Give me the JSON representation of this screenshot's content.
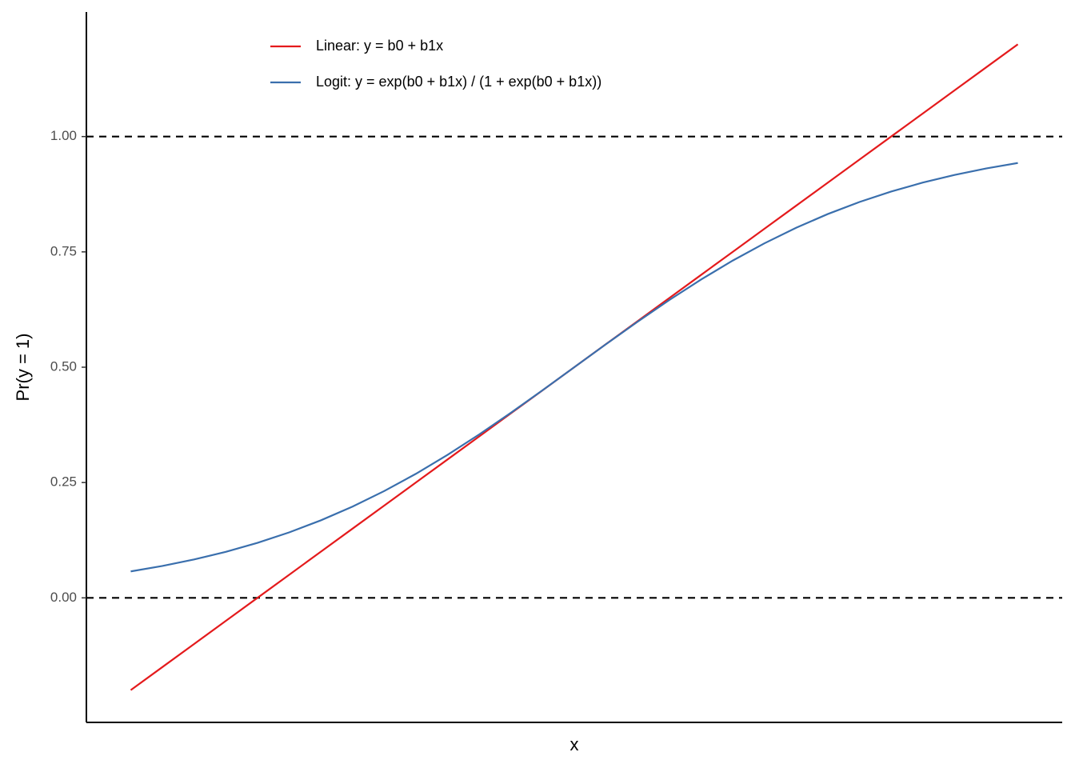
{
  "chart_data": {
    "type": "line",
    "x_label": "x",
    "y_label": "Pr(y = 1)",
    "x": [
      -2.8,
      -2.6,
      -2.4,
      -2.2,
      -2.0,
      -1.8,
      -1.6,
      -1.4,
      -1.2,
      -1.0,
      -0.8,
      -0.6,
      -0.4,
      -0.2,
      0,
      0.2,
      0.4,
      0.6,
      0.8,
      1.0,
      1.2,
      1.4,
      1.6,
      1.8,
      2.0,
      2.2,
      2.4,
      2.6,
      2.8
    ],
    "series": [
      {
        "name": "Linear: y = b0 + b1x",
        "color": "#e41a1c",
        "values": [
          -0.2,
          -0.15,
          -0.1,
          -0.05,
          0,
          0.05,
          0.1,
          0.15,
          0.2,
          0.25,
          0.3,
          0.35,
          0.4,
          0.45,
          0.5,
          0.55,
          0.6,
          0.65,
          0.7,
          0.75,
          0.8,
          0.85,
          0.9,
          0.95,
          1.0,
          1.05,
          1.1,
          1.15,
          1.2
        ]
      },
      {
        "name": "Logit: y = exp(b0 + b1x) / (1 + exp(b0 + b1x))",
        "color": "#3a6fad",
        "values": [
          0.0573,
          0.0691,
          0.0832,
          0.0998,
          0.1192,
          0.1419,
          0.168,
          0.1978,
          0.2315,
          0.2689,
          0.31,
          0.3543,
          0.4013,
          0.4502,
          0.5,
          0.5498,
          0.5987,
          0.6457,
          0.69,
          0.7311,
          0.7685,
          0.8022,
          0.832,
          0.8581,
          0.8808,
          0.9002,
          0.9168,
          0.9309,
          0.9427
        ]
      }
    ],
    "xlim": [
      -3.08,
      3.08
    ],
    "ylim": [
      -0.27,
      1.27
    ],
    "yticks": [
      {
        "value": 0,
        "label": "0.00"
      },
      {
        "value": 0.25,
        "label": "0.25"
      },
      {
        "value": 0.5,
        "label": "0.50"
      },
      {
        "value": 0.75,
        "label": "0.75"
      },
      {
        "value": 1,
        "label": "1.00"
      }
    ],
    "hlines": [
      0,
      1
    ],
    "legend": "top-left"
  }
}
